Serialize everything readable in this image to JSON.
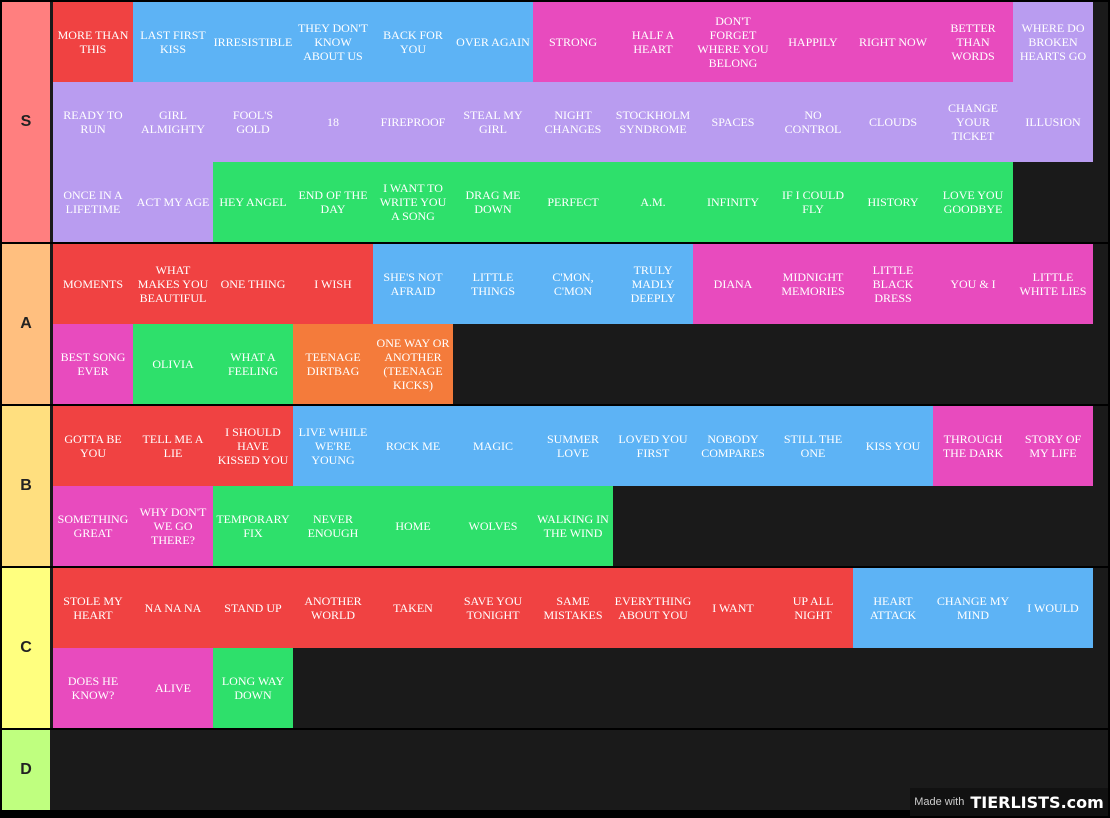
{
  "tiers": [
    {
      "label": "S",
      "color": "#ff7f7f",
      "items": [
        {
          "text": "MORE THAN THIS",
          "color": "#f04242"
        },
        {
          "text": "LAST FIRST KISS",
          "color": "#5db3f5"
        },
        {
          "text": "IRRESISTIBLE",
          "color": "#5db3f5"
        },
        {
          "text": "THEY DON'T KNOW ABOUT US",
          "color": "#5db3f5"
        },
        {
          "text": "BACK FOR YOU",
          "color": "#5db3f5"
        },
        {
          "text": "OVER AGAIN",
          "color": "#5db3f5"
        },
        {
          "text": "STRONG",
          "color": "#e84bbe"
        },
        {
          "text": "HALF A HEART",
          "color": "#e84bbe"
        },
        {
          "text": "DON'T FORGET WHERE YOU BELONG",
          "color": "#e84bbe"
        },
        {
          "text": "HAPPILY",
          "color": "#e84bbe"
        },
        {
          "text": "RIGHT NOW",
          "color": "#e84bbe"
        },
        {
          "text": "BETTER THAN WORDS",
          "color": "#e84bbe"
        },
        {
          "text": "WHERE DO BROKEN HEARTS GO",
          "color": "#b99cf0"
        },
        {
          "text": "READY TO RUN",
          "color": "#b99cf0"
        },
        {
          "text": "GIRL ALMIGHTY",
          "color": "#b99cf0"
        },
        {
          "text": "FOOL'S GOLD",
          "color": "#b99cf0"
        },
        {
          "text": "18",
          "color": "#b99cf0"
        },
        {
          "text": "FIREPROOF",
          "color": "#b99cf0"
        },
        {
          "text": "STEAL MY GIRL",
          "color": "#b99cf0"
        },
        {
          "text": "NIGHT CHANGES",
          "color": "#b99cf0"
        },
        {
          "text": "STOCKHOLM SYNDROME",
          "color": "#b99cf0"
        },
        {
          "text": "SPACES",
          "color": "#b99cf0"
        },
        {
          "text": "NO CONTROL",
          "color": "#b99cf0"
        },
        {
          "text": "CLOUDS",
          "color": "#b99cf0"
        },
        {
          "text": "CHANGE YOUR TICKET",
          "color": "#b99cf0"
        },
        {
          "text": "ILLUSION",
          "color": "#b99cf0"
        },
        {
          "text": "ONCE IN A LIFETIME",
          "color": "#b99cf0"
        },
        {
          "text": "ACT MY AGE",
          "color": "#b99cf0"
        },
        {
          "text": "HEY ANGEL",
          "color": "#2ee06b"
        },
        {
          "text": "END OF THE DAY",
          "color": "#2ee06b"
        },
        {
          "text": "I WANT TO WRITE YOU A SONG",
          "color": "#2ee06b"
        },
        {
          "text": "DRAG ME DOWN",
          "color": "#2ee06b"
        },
        {
          "text": "PERFECT",
          "color": "#2ee06b"
        },
        {
          "text": "A.M.",
          "color": "#2ee06b"
        },
        {
          "text": "INFINITY",
          "color": "#2ee06b"
        },
        {
          "text": "IF I COULD FLY",
          "color": "#2ee06b"
        },
        {
          "text": "HISTORY",
          "color": "#2ee06b"
        },
        {
          "text": "LOVE YOU GOODBYE",
          "color": "#2ee06b"
        }
      ]
    },
    {
      "label": "A",
      "color": "#ffbf7f",
      "items": [
        {
          "text": "MOMENTS",
          "color": "#f04242"
        },
        {
          "text": "WHAT MAKES YOU BEAUTIFUL",
          "color": "#f04242"
        },
        {
          "text": "ONE THING",
          "color": "#f04242"
        },
        {
          "text": "I WISH",
          "color": "#f04242"
        },
        {
          "text": "SHE'S NOT AFRAID",
          "color": "#5db3f5"
        },
        {
          "text": "LITTLE THINGS",
          "color": "#5db3f5"
        },
        {
          "text": "C'MON, C'MON",
          "color": "#5db3f5"
        },
        {
          "text": "TRULY MADLY DEEPLY",
          "color": "#5db3f5"
        },
        {
          "text": "DIANA",
          "color": "#e84bbe"
        },
        {
          "text": "MIDNIGHT MEMORIES",
          "color": "#e84bbe"
        },
        {
          "text": "LITTLE BLACK DRESS",
          "color": "#e84bbe"
        },
        {
          "text": "YOU & I",
          "color": "#e84bbe"
        },
        {
          "text": "LITTLE WHITE LIES",
          "color": "#e84bbe"
        },
        {
          "text": "BEST SONG EVER",
          "color": "#e84bbe"
        },
        {
          "text": "OLIVIA",
          "color": "#2ee06b"
        },
        {
          "text": "WHAT A FEELING",
          "color": "#2ee06b"
        },
        {
          "text": "TEENAGE DIRTBAG",
          "color": "#f47b3b"
        },
        {
          "text": "ONE WAY OR ANOTHER (TEENAGE KICKS)",
          "color": "#f47b3b"
        }
      ]
    },
    {
      "label": "B",
      "color": "#ffdf7f",
      "items": [
        {
          "text": "GOTTA BE YOU",
          "color": "#f04242"
        },
        {
          "text": "TELL ME A LIE",
          "color": "#f04242"
        },
        {
          "text": "I SHOULD HAVE KISSED YOU",
          "color": "#f04242"
        },
        {
          "text": "LIVE WHILE WE'RE YOUNG",
          "color": "#5db3f5"
        },
        {
          "text": "ROCK ME",
          "color": "#5db3f5"
        },
        {
          "text": "MAGIC",
          "color": "#5db3f5"
        },
        {
          "text": "SUMMER LOVE",
          "color": "#5db3f5"
        },
        {
          "text": "LOVED YOU FIRST",
          "color": "#5db3f5"
        },
        {
          "text": "NOBODY COMPARES",
          "color": "#5db3f5"
        },
        {
          "text": "STILL THE ONE",
          "color": "#5db3f5"
        },
        {
          "text": "KISS YOU",
          "color": "#5db3f5"
        },
        {
          "text": "THROUGH THE DARK",
          "color": "#e84bbe"
        },
        {
          "text": "STORY OF MY LIFE",
          "color": "#e84bbe"
        },
        {
          "text": "SOMETHING GREAT",
          "color": "#e84bbe"
        },
        {
          "text": "WHY DON'T WE GO THERE?",
          "color": "#e84bbe"
        },
        {
          "text": "TEMPORARY FIX",
          "color": "#2ee06b"
        },
        {
          "text": "NEVER ENOUGH",
          "color": "#2ee06b"
        },
        {
          "text": "HOME",
          "color": "#2ee06b"
        },
        {
          "text": "WOLVES",
          "color": "#2ee06b"
        },
        {
          "text": "WALKING IN THE WIND",
          "color": "#2ee06b"
        }
      ]
    },
    {
      "label": "C",
      "color": "#ffff7f",
      "items": [
        {
          "text": "STOLE MY HEART",
          "color": "#f04242"
        },
        {
          "text": "NA NA NA",
          "color": "#f04242"
        },
        {
          "text": "STAND UP",
          "color": "#f04242"
        },
        {
          "text": "ANOTHER WORLD",
          "color": "#f04242"
        },
        {
          "text": "TAKEN",
          "color": "#f04242"
        },
        {
          "text": "SAVE YOU TONIGHT",
          "color": "#f04242"
        },
        {
          "text": "SAME MISTAKES",
          "color": "#f04242"
        },
        {
          "text": "EVERYTHING ABOUT YOU",
          "color": "#f04242"
        },
        {
          "text": "I WANT",
          "color": "#f04242"
        },
        {
          "text": "UP ALL NIGHT",
          "color": "#f04242"
        },
        {
          "text": "HEART ATTACK",
          "color": "#5db3f5"
        },
        {
          "text": "CHANGE MY MIND",
          "color": "#5db3f5"
        },
        {
          "text": "I WOULD",
          "color": "#5db3f5"
        },
        {
          "text": "DOES HE KNOW?",
          "color": "#e84bbe"
        },
        {
          "text": "ALIVE",
          "color": "#e84bbe"
        },
        {
          "text": "LONG WAY DOWN",
          "color": "#2ee06b"
        }
      ]
    },
    {
      "label": "D",
      "color": "#bfff7f",
      "items": []
    }
  ],
  "watermark": {
    "prefix": "Made with",
    "brand": "TIERLISTS.com"
  }
}
